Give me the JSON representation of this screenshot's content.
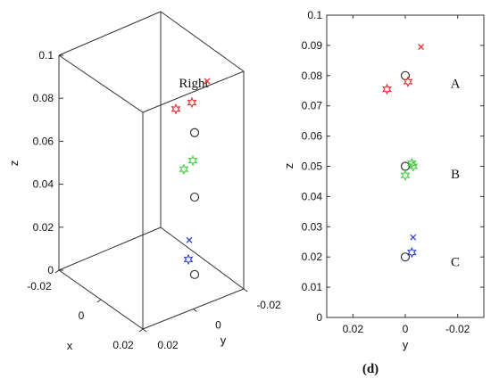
{
  "chart_data": [
    {
      "type": "scatter",
      "view": "3d",
      "title": "",
      "xlabel": "x",
      "ylabel": "y",
      "zlabel": "z",
      "xlim": [
        -0.02,
        0.02
      ],
      "ylim": [
        -0.02,
        0.02
      ],
      "zlim": [
        0,
        0.1
      ],
      "x_ticks": [
        "-0.02",
        "0",
        "0.02"
      ],
      "y_ticks": [
        "0.02",
        "0",
        "-0.02"
      ],
      "z_ticks": [
        "0",
        "0.02",
        "0.04",
        "0.06",
        "0.08",
        "0.1"
      ],
      "grid": false,
      "annotations": [
        "Right"
      ],
      "points": [
        {
          "marker": "x",
          "color": "#e23030",
          "z": 0.088
        },
        {
          "marker": "hexagram",
          "color": "#e23030",
          "z": 0.078
        },
        {
          "marker": "hexagram",
          "color": "#e23030",
          "z": 0.075
        },
        {
          "marker": "circle",
          "color": "#333333",
          "z": 0.08
        },
        {
          "marker": "hexagram",
          "color": "#44cc44",
          "z": 0.051
        },
        {
          "marker": "hexagram",
          "color": "#44cc44",
          "z": 0.047
        },
        {
          "marker": "circle",
          "color": "#333333",
          "z": 0.05
        },
        {
          "marker": "x",
          "color": "#3344cc",
          "z": 0.026
        },
        {
          "marker": "hexagram",
          "color": "#3344cc",
          "z": 0.021
        },
        {
          "marker": "circle",
          "color": "#333333",
          "z": 0.02
        }
      ]
    },
    {
      "type": "scatter",
      "view": "2d",
      "title": "",
      "xlabel": "y",
      "ylabel": "z",
      "xlim": [
        0.03,
        -0.03
      ],
      "ylim": [
        0,
        0.1
      ],
      "x_ticks": [
        "0.02",
        "0",
        "-0.02"
      ],
      "y_ticks": [
        "0",
        "0.01",
        "0.02",
        "0.03",
        "0.04",
        "0.05",
        "0.06",
        "0.07",
        "0.08",
        "0.09",
        "0.1"
      ],
      "grid": false,
      "annotations": [
        {
          "text": "A",
          "y": 0.0775
        },
        {
          "text": "B",
          "y": 0.0475
        },
        {
          "text": "C",
          "y": 0.0185
        }
      ],
      "points": [
        {
          "marker": "x",
          "color": "#e23030",
          "x": -0.006,
          "y": 0.0895
        },
        {
          "marker": "circle",
          "color": "#333333",
          "x": 0.0,
          "y": 0.08
        },
        {
          "marker": "hexagram",
          "color": "#e23030",
          "x": -0.001,
          "y": 0.078
        },
        {
          "marker": "hexagram",
          "color": "#e23030",
          "x": 0.007,
          "y": 0.0755
        },
        {
          "marker": "circle",
          "color": "#333333",
          "x": 0.0,
          "y": 0.05
        },
        {
          "marker": "hexagram",
          "color": "#44cc44",
          "x": -0.0025,
          "y": 0.051
        },
        {
          "marker": "hexagram",
          "color": "#44cc44",
          "x": -0.003,
          "y": 0.05
        },
        {
          "marker": "hexagram",
          "color": "#44cc44",
          "x": 0.0,
          "y": 0.047
        },
        {
          "marker": "x",
          "color": "#3344cc",
          "x": -0.003,
          "y": 0.0265
        },
        {
          "marker": "hexagram",
          "color": "#3344cc",
          "x": -0.0025,
          "y": 0.0215
        },
        {
          "marker": "circle",
          "color": "#333333",
          "x": 0.0,
          "y": 0.02
        }
      ]
    }
  ],
  "panel_label": "(d)"
}
